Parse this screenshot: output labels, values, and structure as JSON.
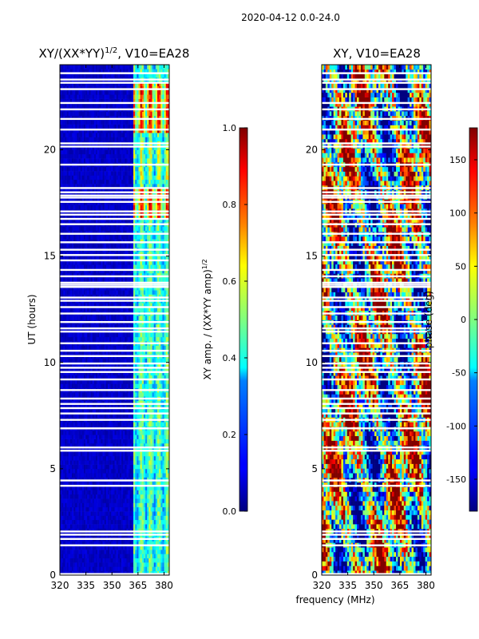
{
  "chart_data": {
    "type": "heatmap",
    "suptitle": "2020-04-12 0.0-24.0",
    "panels": [
      {
        "title": "XY/(XX*YY)^1/2, V10=EA28",
        "title_base": "XY/(XX*YY)",
        "title_exp": "1/2",
        "title_rest": ", V10=EA28",
        "ylabel": "UT (hours)",
        "xlabel": "",
        "xlim": [
          320,
          383
        ],
        "ylim": [
          0,
          24
        ],
        "xticks": [
          320,
          335,
          350,
          365,
          380
        ],
        "yticks": [
          0,
          5,
          10,
          15,
          20
        ],
        "colorbar": {
          "label": "XY amp. / (XX*YY amp)",
          "label_exp": "1/2",
          "range": [
            0.0,
            1.0
          ],
          "ticks": [
            "0.0",
            "0.2",
            "0.4",
            "0.6",
            "0.8",
            "1.0"
          ],
          "tick_values": [
            0.0,
            0.2,
            0.4,
            0.6,
            0.8,
            1.0
          ]
        },
        "description": "Low normalized amplitude below ~362 MHz; higher values (0.3-0.9) in bands between ~362 and 382 MHz, strongest near 17-18 h and 21-23 h"
      },
      {
        "title": "XY, V10=EA28",
        "ylabel": "",
        "xlabel": "frequency (MHz)",
        "xlim": [
          320,
          383
        ],
        "ylim": [
          0,
          24
        ],
        "xticks": [
          320,
          335,
          350,
          365,
          380
        ],
        "yticks": [
          0,
          5,
          10,
          15,
          20
        ],
        "colorbar": {
          "label": "phase (deg)",
          "range": [
            -180,
            180
          ],
          "ticks": [
            "-150",
            "-100",
            "-50",
            "0",
            "50",
            "100",
            "150"
          ],
          "tick_values": [
            -150,
            -100,
            -50,
            0,
            50,
            100,
            150
          ]
        },
        "description": "Noisy XY phase spanning the full -180 to 180 deg range across all frequencies and times"
      }
    ],
    "flagged_hours": [
      0.05,
      1.4,
      1.7,
      1.9,
      2.05,
      4.2,
      4.45,
      5.85,
      6.0,
      6.9,
      7.3,
      7.6,
      7.85,
      8.05,
      8.3,
      8.7,
      9.2,
      9.55,
      9.75,
      9.95,
      10.3,
      10.55,
      10.9,
      11.45,
      11.6,
      11.9,
      12.3,
      12.6,
      12.9,
      13.05,
      13.55,
      13.65,
      13.75,
      14.05,
      14.35,
      14.8,
      15.05,
      15.3,
      15.65,
      16.05,
      16.5,
      16.75,
      16.95,
      17.1,
      17.55,
      17.75,
      17.85,
      18.0,
      18.2,
      19.3,
      20.15,
      20.3,
      20.95,
      21.45,
      21.9,
      22.2,
      22.85,
      23.15,
      23.3,
      23.6
    ]
  },
  "colors": {
    "jet": [
      "#00007f",
      "#0000ff",
      "#007fff",
      "#00ffff",
      "#7fff7f",
      "#ffff00",
      "#ff7f00",
      "#ff0000",
      "#7f0000"
    ]
  }
}
